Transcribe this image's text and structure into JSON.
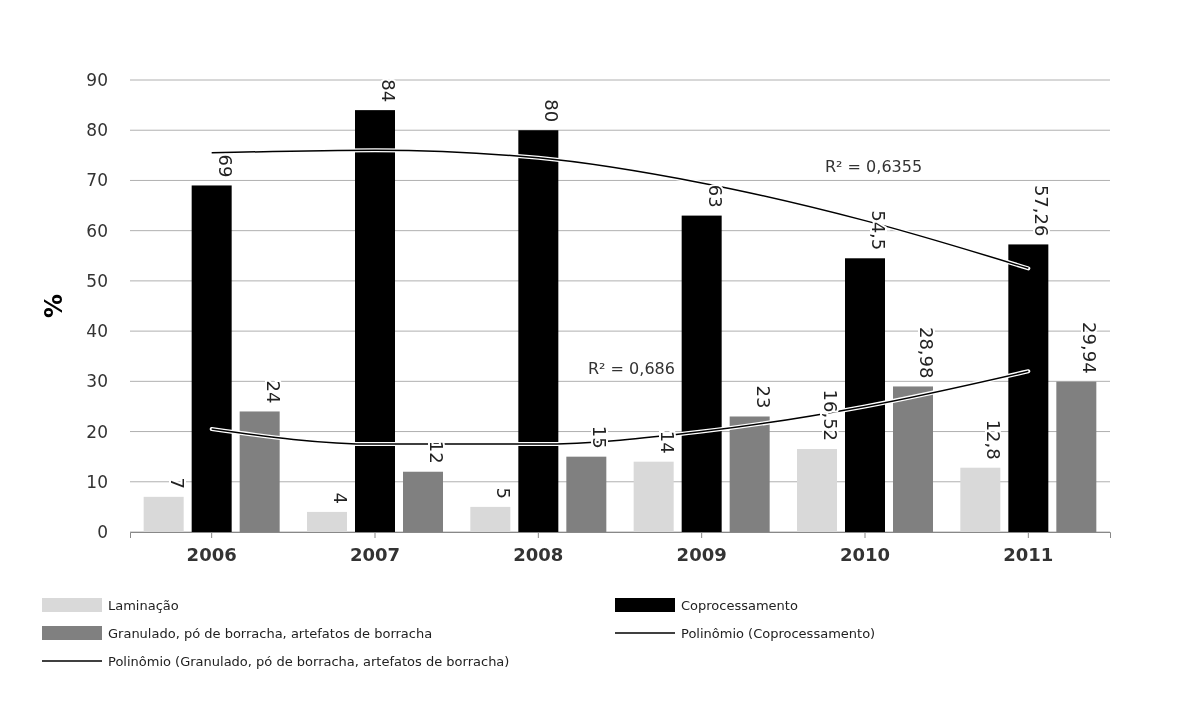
{
  "chart_data": {
    "type": "bar",
    "categories": [
      "2006",
      "2007",
      "2008",
      "2009",
      "2010",
      "2011"
    ],
    "ylabel": "%",
    "ylim": [
      0,
      90
    ],
    "yticks": [
      0,
      10,
      20,
      30,
      40,
      50,
      60,
      70,
      80,
      90
    ],
    "grid": "y",
    "legend": "bottom",
    "series": [
      {
        "name": "Laminação",
        "color": "#d9d9d9",
        "values": [
          7,
          4,
          5,
          14,
          16.52,
          12.8
        ],
        "value_labels": [
          "7",
          "4",
          "5",
          "14",
          "16,52",
          "12,8"
        ]
      },
      {
        "name": "Coprocessamento",
        "color": "#000000",
        "values": [
          69,
          84,
          80,
          63,
          54.5,
          57.26
        ],
        "value_labels": [
          "69",
          "84",
          "80",
          "63",
          "54,5",
          "57,26"
        ]
      },
      {
        "name": "Granulado, pó de borracha, artefatos de borracha",
        "color": "#808080",
        "values": [
          24,
          12,
          15,
          23,
          28.98,
          29.94
        ],
        "value_labels": [
          "24",
          "12",
          "15",
          "23",
          "28,98",
          "29,94"
        ]
      },
      {
        "name": "Polinômio (Coprocessamento)",
        "type": "line",
        "color": "#000000",
        "values": [
          75.5,
          76,
          74.5,
          69.5,
          62,
          52.5
        ]
      },
      {
        "name": "Polinômio (Granulado, pó de borracha, artefatos de borracha)",
        "type": "line",
        "color": "#000000",
        "values": [
          20.5,
          17.5,
          17.5,
          20,
          25,
          32
        ]
      }
    ],
    "annotations": [
      "R² = 0,6355",
      "R² = 0,686"
    ]
  }
}
